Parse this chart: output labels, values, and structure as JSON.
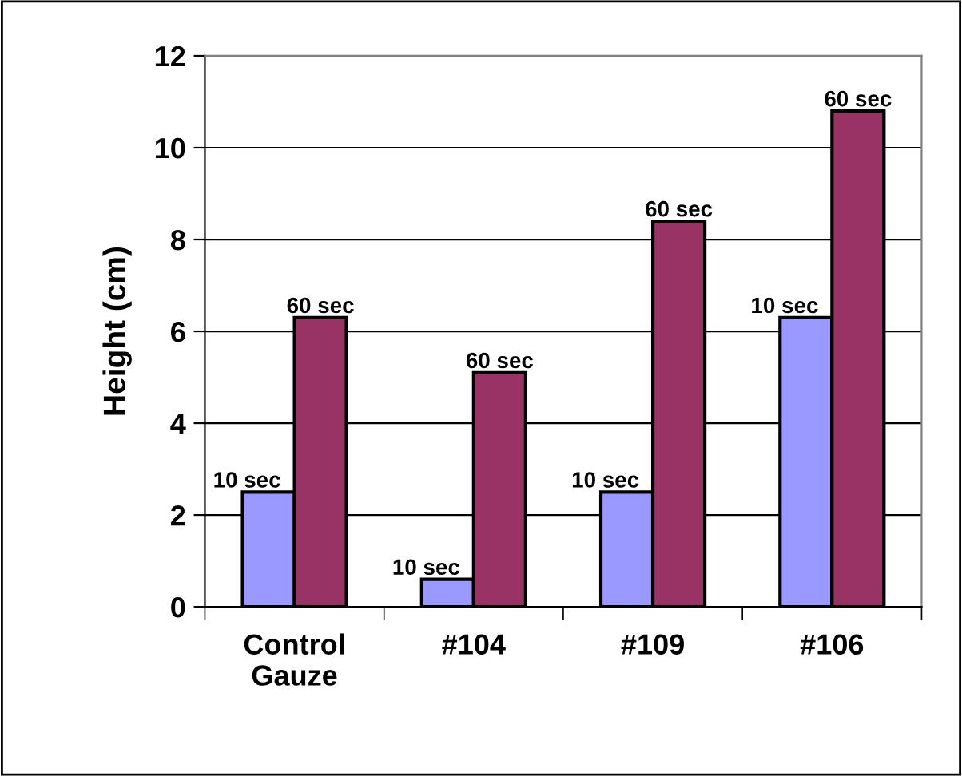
{
  "chart_data": {
    "type": "bar",
    "ylabel": "Height (cm)",
    "categories": [
      "Control Gauze",
      "#104",
      "#109",
      "#106"
    ],
    "series": [
      {
        "name": "10 sec",
        "color": "#9999ff",
        "values": [
          2.5,
          0.6,
          2.5,
          6.3
        ]
      },
      {
        "name": "60 sec",
        "color": "#993366",
        "values": [
          6.3,
          5.1,
          8.4,
          10.8
        ]
      }
    ],
    "ylim": [
      0,
      12
    ],
    "yticks": [
      0,
      2,
      4,
      6,
      8,
      10,
      12
    ],
    "grid": "y",
    "legend": false
  }
}
